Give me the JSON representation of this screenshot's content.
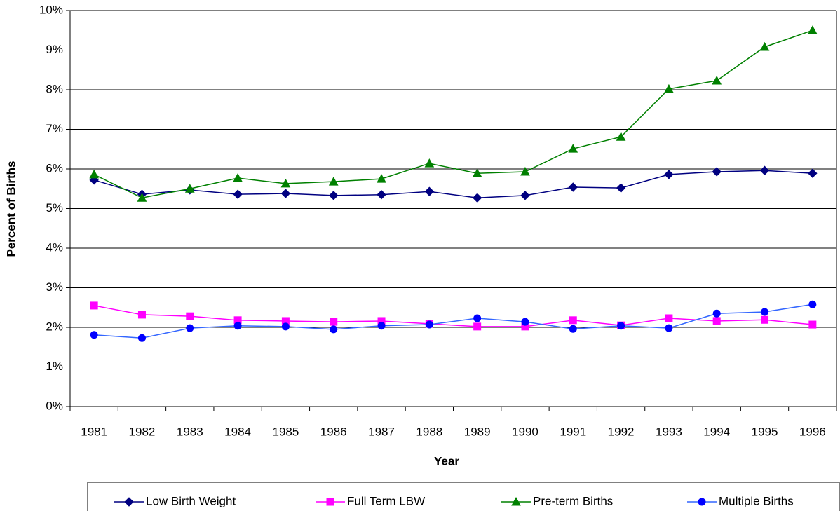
{
  "chart_data": {
    "type": "line",
    "x_label": "Year",
    "y_label": "Percent of Births",
    "categories": [
      "1981",
      "1982",
      "1983",
      "1984",
      "1985",
      "1986",
      "1987",
      "1988",
      "1989",
      "1990",
      "1991",
      "1992",
      "1993",
      "1994",
      "1995",
      "1996"
    ],
    "series": [
      {
        "name": "Low Birth Weight",
        "color": "#000080",
        "marker": "diamond",
        "values": [
          5.72,
          5.36,
          5.47,
          5.36,
          5.38,
          5.33,
          5.35,
          5.43,
          5.27,
          5.33,
          5.54,
          5.52,
          5.86,
          5.93,
          5.96,
          5.89
        ]
      },
      {
        "name": "Full Term LBW",
        "color": "#ff00ff",
        "marker": "square",
        "values": [
          2.55,
          2.32,
          2.28,
          2.18,
          2.16,
          2.14,
          2.16,
          2.09,
          2.02,
          2.02,
          2.18,
          2.05,
          2.23,
          2.16,
          2.19,
          2.07
        ]
      },
      {
        "name": "Pre-term Births",
        "color": "#008000",
        "marker": "triangle",
        "values": [
          5.86,
          5.27,
          5.5,
          5.77,
          5.63,
          5.68,
          5.75,
          6.14,
          5.89,
          5.93,
          6.51,
          6.81,
          8.02,
          8.23,
          9.08,
          9.5
        ]
      },
      {
        "name": "Multiple Births",
        "color": "#0000ff",
        "line_color": "#3366ff",
        "marker": "circle",
        "values": [
          1.81,
          1.73,
          1.98,
          2.04,
          2.02,
          1.95,
          2.04,
          2.07,
          2.23,
          2.14,
          1.96,
          2.04,
          1.98,
          2.35,
          2.39,
          2.58
        ]
      }
    ],
    "ylim": [
      0,
      10
    ],
    "yticks": [
      {
        "value": 0,
        "label": "0%"
      },
      {
        "value": 1,
        "label": "1%"
      },
      {
        "value": 2,
        "label": "2%"
      },
      {
        "value": 3,
        "label": "3%"
      },
      {
        "value": 4,
        "label": "4%"
      },
      {
        "value": 5,
        "label": "5%"
      },
      {
        "value": 6,
        "label": "6%"
      },
      {
        "value": 7,
        "label": "7%"
      },
      {
        "value": 8,
        "label": "8%"
      },
      {
        "value": 9,
        "label": "9%"
      },
      {
        "value": 10,
        "label": "10%"
      }
    ],
    "grid": true,
    "legend": "bottom"
  }
}
